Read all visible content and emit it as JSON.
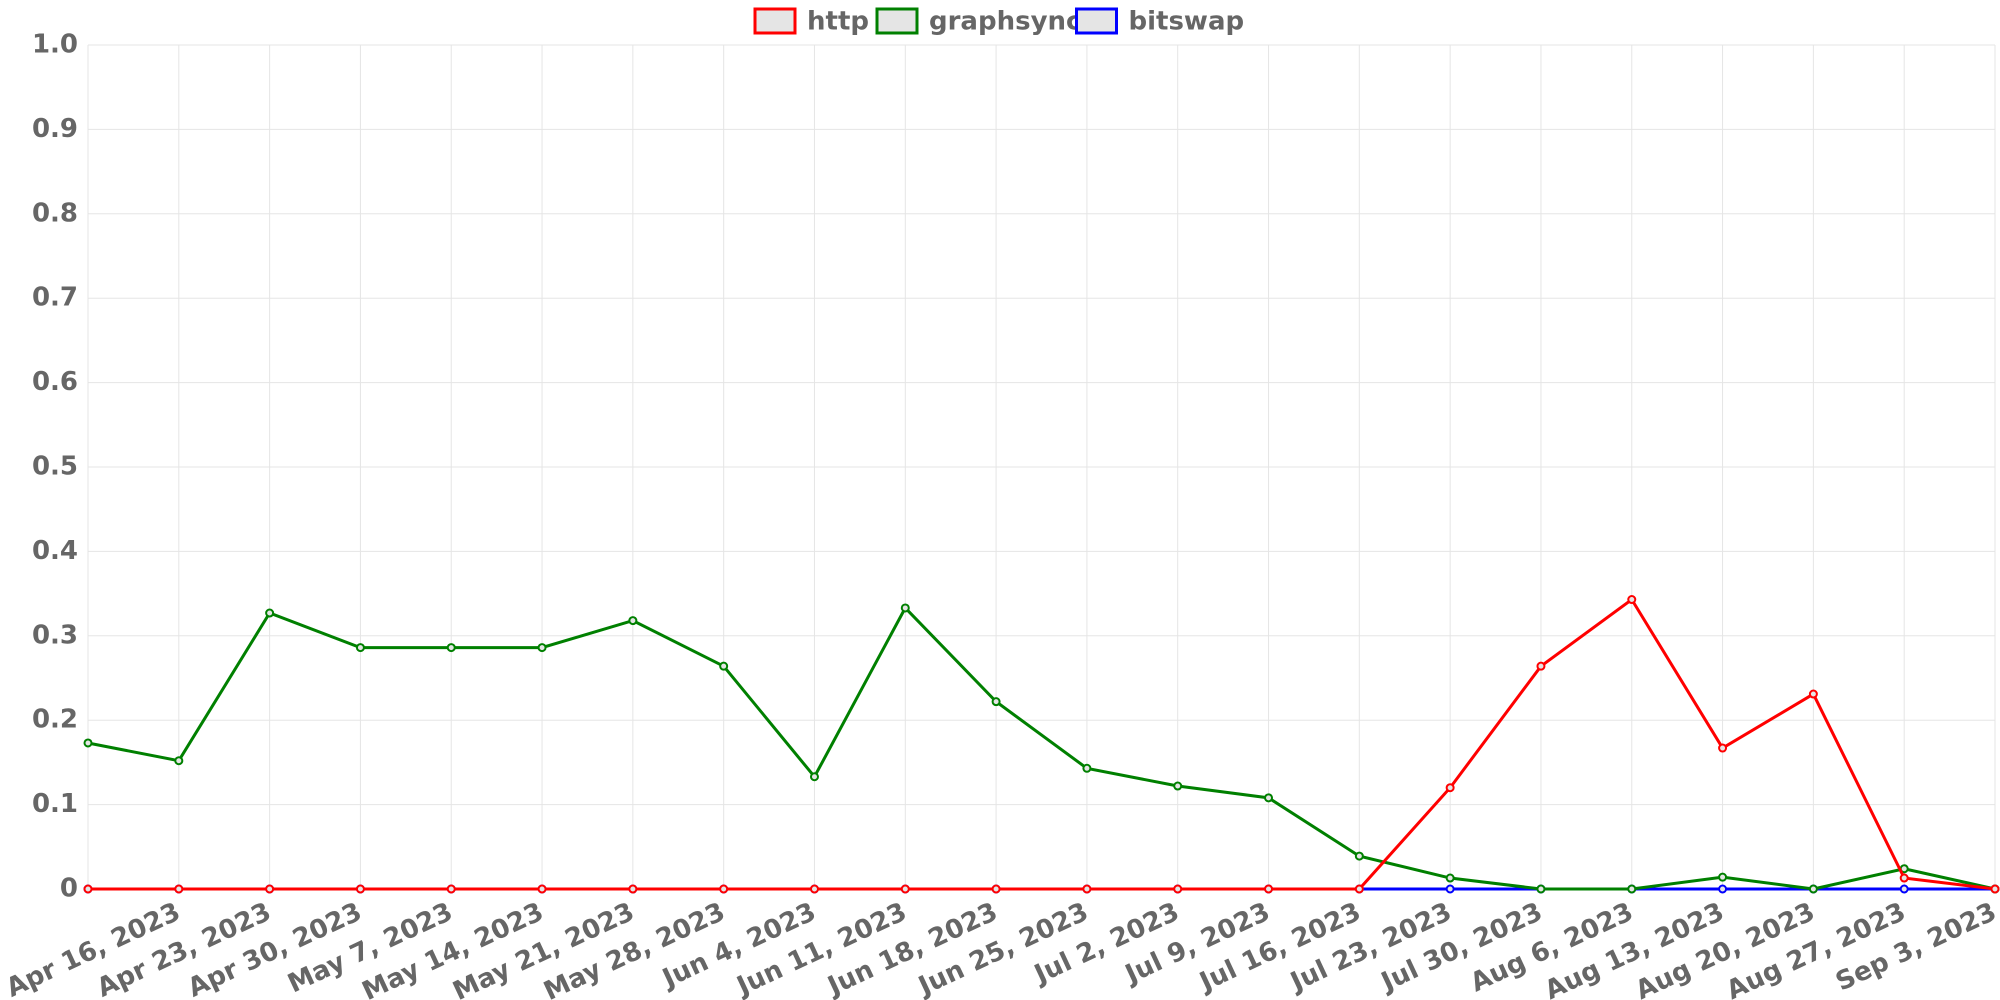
{
  "chart_data": {
    "type": "line",
    "categories": [
      null,
      "Apr 16, 2023",
      "Apr 23, 2023",
      "Apr 30, 2023",
      "May 7, 2023",
      "May 14, 2023",
      "May 21, 2023",
      "May 28, 2023",
      "Jun 4, 2023",
      "Jun 11, 2023",
      "Jun 18, 2023",
      "Jun 25, 2023",
      "Jul 2, 2023",
      "Jul 9, 2023",
      "Jul 16, 2023",
      "Jul 23, 2023",
      "Jul 30, 2023",
      "Aug 6, 2023",
      "Aug 13, 2023",
      "Aug 20, 2023",
      "Aug 27, 2023",
      "Sep 3, 2023"
    ],
    "series": [
      {
        "name": "http",
        "color": "#ff0000",
        "values": [
          0,
          0,
          0,
          0,
          0,
          0,
          0,
          0,
          0,
          0,
          0,
          0,
          0,
          0,
          0,
          0.12,
          0.264,
          0.343,
          0.167,
          0.231,
          0.013,
          0
        ]
      },
      {
        "name": "graphsync",
        "color": "#008000",
        "values": [
          0.173,
          0.152,
          0.327,
          0.286,
          0.286,
          0.286,
          0.318,
          0.264,
          0.133,
          0.333,
          0.222,
          0.143,
          0.122,
          0.108,
          0.039,
          0.013,
          0,
          0,
          0.014,
          0,
          0.024,
          0
        ]
      },
      {
        "name": "bitswap",
        "color": "#0000ff",
        "values": [
          0,
          0,
          0,
          0,
          0,
          0,
          0,
          0,
          0,
          0,
          0,
          0,
          0,
          0,
          0,
          0,
          0,
          0,
          0,
          0,
          0,
          0
        ]
      }
    ],
    "ylim": [
      0,
      1
    ],
    "yticks": [
      0,
      0.1,
      0.2,
      0.3,
      0.4,
      0.5,
      0.6,
      0.7,
      0.8,
      0.9,
      {
        "value": 1,
        "label": "1.0"
      }
    ],
    "grid": true,
    "legend": "top"
  }
}
